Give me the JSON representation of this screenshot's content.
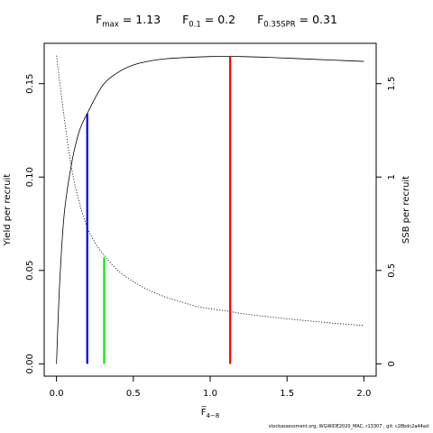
{
  "title": {
    "fmax": {
      "label": "F",
      "sub": "max",
      "value": "= 1.13"
    },
    "f01": {
      "label": "F",
      "sub": "0.1",
      "value": "= 0.2"
    },
    "f035": {
      "label": "F",
      "sub": "0.35SPR",
      "value": "= 0.31"
    }
  },
  "footer_text": "stockassessment.org, WGWIDE2020_MAC, r13307 , git: c28bdc2a44ad",
  "chart_data": {
    "type": "line",
    "xlabel": "F̅",
    "xlabel_sub": "4−8",
    "ylabel_left": "Yield per recruit",
    "ylabel_right": "SSB per recruit",
    "xlim": [
      0,
      2.0
    ],
    "ylim_left": [
      0,
      0.165
    ],
    "ylim_right": [
      0,
      1.65
    ],
    "x_ticks": [
      0.0,
      0.5,
      1.0,
      1.5,
      2.0
    ],
    "x_tick_labels": [
      "0.0",
      "0.5",
      "1.0",
      "1.5",
      "2.0"
    ],
    "y_left_ticks": [
      0.0,
      0.05,
      0.1,
      0.15
    ],
    "y_left_tick_labels": [
      "0.00",
      "0.05",
      "0.10",
      "0.15"
    ],
    "y_right_ticks": [
      0,
      0.5,
      1,
      1.5
    ],
    "y_right_tick_labels": [
      "0",
      "0.5",
      "1",
      "1.5"
    ],
    "grid": false,
    "series": [
      {
        "name": "Yield per recruit",
        "axis": "left",
        "style": "solid",
        "color": "#000000",
        "x": [
          0,
          0.02,
          0.05,
          0.1,
          0.15,
          0.2,
          0.3,
          0.4,
          0.5,
          0.6,
          0.7,
          0.8,
          0.9,
          1.0,
          1.13,
          1.2,
          1.4,
          1.6,
          1.8,
          2.0
        ],
        "y": [
          0.0,
          0.042,
          0.08,
          0.108,
          0.125,
          0.134,
          0.149,
          0.156,
          0.16,
          0.162,
          0.1632,
          0.1638,
          0.1642,
          0.1645,
          0.1646,
          0.1645,
          0.164,
          0.1633,
          0.1626,
          0.1619
        ]
      },
      {
        "name": "SSB per recruit",
        "axis": "right",
        "style": "dotted",
        "color": "#000000",
        "x": [
          0,
          0.05,
          0.1,
          0.15,
          0.2,
          0.25,
          0.3,
          0.4,
          0.5,
          0.6,
          0.7,
          0.8,
          0.9,
          1.0,
          1.13,
          1.2,
          1.4,
          1.6,
          1.8,
          2.0
        ],
        "y": [
          1.65,
          1.32,
          1.04,
          0.86,
          0.73,
          0.65,
          0.59,
          0.5,
          0.44,
          0.395,
          0.36,
          0.335,
          0.31,
          0.295,
          0.28,
          0.27,
          0.25,
          0.233,
          0.218,
          0.205
        ]
      }
    ],
    "reference_lines": [
      {
        "name": "Fmax",
        "x": 1.13,
        "y_to": 0.1646,
        "axis": "left",
        "color": "#ff0000"
      },
      {
        "name": "F0.1",
        "x": 0.2,
        "y_to": 0.134,
        "axis": "left",
        "color": "#0000ff"
      },
      {
        "name": "F0.35SPR",
        "x": 0.31,
        "y_to": 0.57,
        "axis": "right",
        "color": "#00ee00"
      }
    ]
  }
}
